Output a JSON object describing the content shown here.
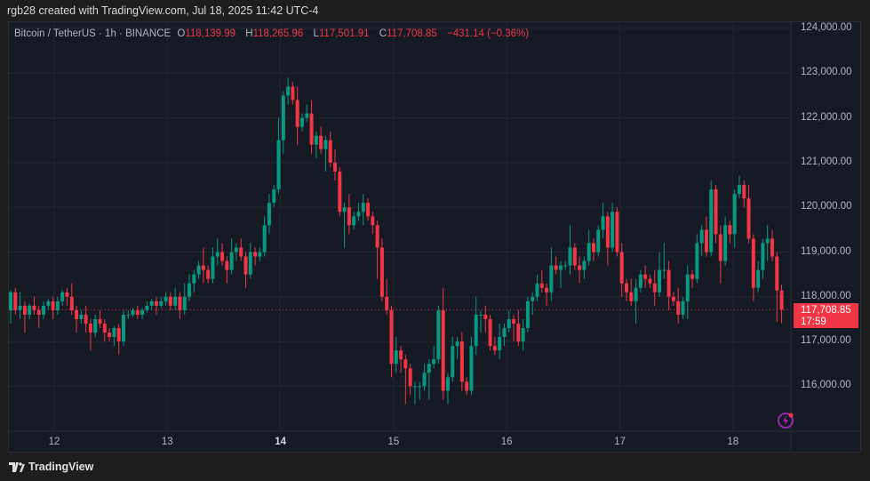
{
  "credit": "rgb28 created with TradingView.com, Jul 18, 2025 11:42 UTC-4",
  "legend": {
    "symbol": "Bitcoin / TetherUS · 1h · BINANCE",
    "o_label": "O",
    "o": "118,139.99",
    "h_label": "H",
    "h": "118,265.96",
    "l_label": "L",
    "l": "117,501.91",
    "c_label": "C",
    "c": "117,708.85",
    "change": "−431.14 (−0.36%)"
  },
  "price_axis": [
    "124,000.00",
    "123,000.00",
    "122,000.00",
    "121,000.00",
    "120,000.00",
    "119,000.00",
    "118,000.00",
    "117,000.00",
    "116,000.00"
  ],
  "current_price": {
    "value": "117,708.85",
    "countdown": "17:59"
  },
  "time_axis": [
    "12",
    "13",
    "14",
    "15",
    "16",
    "17",
    "18"
  ],
  "footer": {
    "brand": "TradingView"
  },
  "colors": {
    "up": "#089981",
    "down": "#f23645",
    "background": "#161a25",
    "grid": "#232733",
    "accent": "#9c27b0"
  },
  "chart_data": {
    "type": "candlestick",
    "interval": "1h",
    "units": "USD thousands",
    "first_open": 117.7,
    "ylim": [
      115.2,
      124.4
    ],
    "closes": [
      118.1,
      117.7,
      117.8,
      117.6,
      117.8,
      117.7,
      117.6,
      117.8,
      117.9,
      117.7,
      117.9,
      118.1,
      118.0,
      117.7,
      117.5,
      117.6,
      117.4,
      117.2,
      117.5,
      117.4,
      117.2,
      117.1,
      117.3,
      117.0,
      117.6,
      117.6,
      117.7,
      117.6,
      117.7,
      117.8,
      117.9,
      117.8,
      117.9,
      118.0,
      117.8,
      118.0,
      117.7,
      118.0,
      118.3,
      118.5,
      118.7,
      118.6,
      118.4,
      118.9,
      119.0,
      118.8,
      118.6,
      119.0,
      119.1,
      118.9,
      118.5,
      119.0,
      118.9,
      119.0,
      119.6,
      120.1,
      120.4,
      121.5,
      122.5,
      122.7,
      122.4,
      121.8,
      122.0,
      122.1,
      121.4,
      121.6,
      121.3,
      121.5,
      121.0,
      120.8,
      119.9,
      120.0,
      119.6,
      119.8,
      119.9,
      120.1,
      119.8,
      119.6,
      119.1,
      118.0,
      117.7,
      116.5,
      116.8,
      116.6,
      116.4,
      116.0,
      116.0,
      116.0,
      116.3,
      116.5,
      116.6,
      117.7,
      115.9,
      116.2,
      116.9,
      117.0,
      116.1,
      115.9,
      116.9,
      117.6,
      117.6,
      117.5,
      116.9,
      116.8,
      117.1,
      117.3,
      117.5,
      117.4,
      117.0,
      117.3,
      117.9,
      118.0,
      118.3,
      118.2,
      118.1,
      118.7,
      118.6,
      118.7,
      118.7,
      119.1,
      118.7,
      118.6,
      118.8,
      119.2,
      119.0,
      119.5,
      119.8,
      119.1,
      119.9,
      119.0,
      118.3,
      118.1,
      117.9,
      118.2,
      118.5,
      118.4,
      118.3,
      118.1,
      118.6,
      118.6,
      118.0,
      117.9,
      117.6,
      117.9,
      118.5,
      118.4,
      119.2,
      119.5,
      119.0,
      120.4,
      119.4,
      118.8,
      119.6,
      119.4,
      120.3,
      120.5,
      120.2,
      119.3,
      118.2,
      118.6,
      119.2,
      119.3,
      118.9,
      118.14,
      117.71
    ],
    "upper_wicks": [
      0.05,
      0.1,
      0.3,
      0.1,
      0.05,
      0.2,
      0.1,
      0.1,
      0.05,
      0.1,
      0.1,
      0.05,
      0.1,
      0.3,
      0.1,
      0.1,
      0.2,
      0.1,
      0.1,
      0.2,
      0.1,
      0.1,
      0.05,
      0.1,
      0.1,
      0.1,
      0.05,
      0.1,
      0.05,
      0.1,
      0.05,
      0.1,
      0.1,
      0.1,
      0.1,
      0.2,
      0.1,
      0.3,
      0.2,
      0.1,
      0.1,
      0.4,
      0.1,
      0.2,
      0.3,
      0.2,
      0.1,
      0.3,
      0.1,
      0.2,
      0.1,
      0.2,
      0.1,
      0.1,
      0.2,
      0.2,
      0.1,
      0.5,
      0.1,
      0.2,
      0.1,
      0.3,
      0.1,
      0.2,
      0.3,
      0.1,
      0.2,
      0.1,
      0.2,
      0.3,
      0.1,
      0.1,
      0.3,
      0.1,
      0.2,
      0.2,
      0.1,
      0.1,
      0.1,
      0.2,
      0.4,
      0.1,
      0.3,
      0.1,
      0.1,
      0.1,
      0.1,
      0.1,
      0.2,
      0.1,
      0.3,
      0.1,
      0.5,
      0.1,
      0.2,
      0.1,
      0.2,
      0.1,
      0.2,
      0.4,
      0.1,
      0.2,
      0.1,
      0.2,
      0.3,
      0.1,
      0.2,
      0.1,
      0.3,
      0.2,
      0.1,
      0.1,
      0.2,
      0.3,
      0.1,
      0.4,
      0.2,
      0.1,
      0.1,
      0.5,
      0.1,
      0.2,
      0.1,
      0.3,
      0.1,
      0.1,
      0.3,
      0.1,
      0.2,
      0.1,
      0.2,
      0.1,
      0.3,
      0.2,
      0.1,
      0.2,
      0.1,
      0.3,
      0.4,
      0.6,
      0.2,
      0.1,
      0.3,
      0.1,
      0.2,
      0.1,
      0.2,
      0.1,
      0.3,
      0.2,
      0.1,
      0.2,
      0.2,
      0.1,
      0.1,
      0.2,
      0.1,
      0.3,
      0.1,
      0.2,
      0.1,
      0.3,
      0.2,
      0.1,
      0.13
    ],
    "lower_wicks": [
      0.3,
      0.1,
      0.2,
      0.4,
      0.1,
      0.1,
      0.3,
      0.1,
      0.1,
      0.2,
      0.1,
      0.1,
      0.2,
      0.1,
      0.3,
      0.1,
      0.2,
      0.4,
      0.1,
      0.1,
      0.2,
      0.1,
      0.2,
      0.3,
      0.1,
      0.1,
      0.05,
      0.1,
      0.1,
      0.05,
      0.1,
      0.2,
      0.05,
      0.1,
      0.1,
      0.1,
      0.2,
      0.1,
      0.1,
      0.2,
      0.1,
      0.3,
      0.1,
      0.1,
      0.2,
      0.1,
      0.3,
      0.1,
      0.2,
      0.1,
      0.3,
      0.1,
      0.2,
      0.1,
      0.1,
      0.2,
      0.1,
      0.1,
      0.3,
      0.2,
      0.1,
      0.4,
      0.1,
      0.1,
      0.2,
      0.3,
      0.1,
      0.5,
      0.1,
      0.2,
      0.1,
      0.8,
      0.2,
      0.1,
      0.1,
      0.3,
      0.1,
      0.2,
      0.7,
      0.1,
      0.1,
      0.3,
      0.2,
      0.3,
      0.8,
      0.2,
      0.4,
      0.3,
      0.1,
      0.6,
      0.1,
      0.1,
      0.2,
      0.3,
      0.1,
      0.3,
      0.2,
      0.1,
      0.1,
      0.2,
      0.4,
      0.3,
      0.1,
      0.1,
      0.2,
      0.2,
      0.1,
      0.4,
      0.1,
      0.2,
      0.1,
      0.3,
      0.1,
      0.1,
      0.3,
      0.2,
      0.1,
      0.4,
      0.1,
      0.2,
      0.1,
      0.3,
      0.2,
      0.1,
      0.2,
      0.1,
      0.2,
      0.4,
      0.1,
      0.1,
      0.3,
      0.2,
      0.1,
      0.5,
      0.1,
      0.2,
      0.1,
      0.3,
      0.1,
      0.2,
      0.3,
      0.1,
      0.2,
      0.1,
      0.4,
      0.2,
      0.1,
      0.3,
      0.1,
      0.1,
      0.2,
      0.5,
      0.1,
      0.2,
      0.3,
      0.1,
      0.2,
      0.1,
      0.3,
      0.1,
      0.2,
      0.4,
      0.1,
      0.7,
      0.3,
      0.1,
      0.4,
      0.2,
      0.21
    ]
  }
}
